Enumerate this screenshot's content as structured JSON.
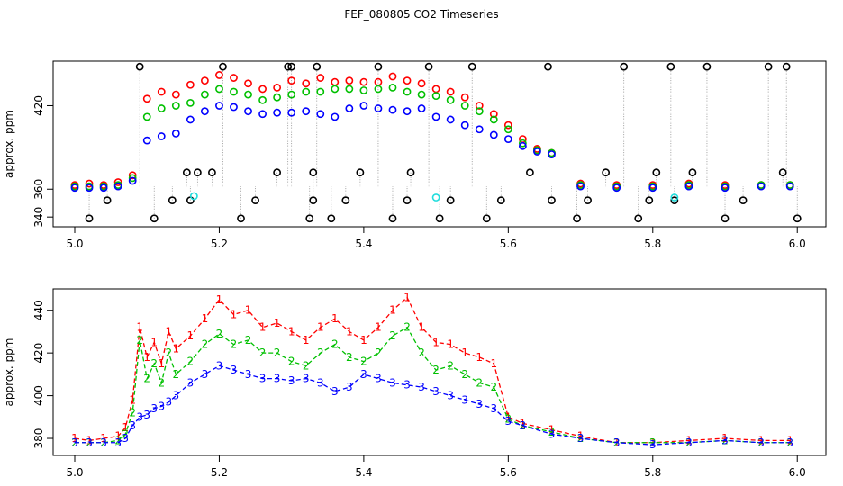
{
  "title": "FEF_080805  CO2 Timeseries",
  "colors": {
    "series1": "#ff0000",
    "series2": "#00c000",
    "series3": "#0000ff",
    "outlier": "#000000",
    "cyan": "#22dddd",
    "link": "#888888"
  },
  "chart_data": [
    {
      "type": "scatter",
      "ylabel": "approx. ppm",
      "xlim": [
        5.0,
        6.0
      ],
      "ylim": [
        333,
        452
      ],
      "y_reversed": false,
      "y_orientation": "standard",
      "xticks": [
        "5.0",
        "5.2",
        "5.4",
        "5.6",
        "5.8",
        "6.0"
      ],
      "yticks": [
        "340",
        "360",
        "420"
      ],
      "grid": false,
      "series": [
        {
          "color": "red",
          "x": [
            5.0,
            5.02,
            5.04,
            5.06,
            5.08,
            5.1,
            5.12,
            5.14,
            5.16,
            5.18,
            5.2,
            5.22,
            5.24,
            5.26,
            5.28,
            5.3,
            5.32,
            5.34,
            5.36,
            5.38,
            5.4,
            5.42,
            5.44,
            5.46,
            5.48,
            5.5,
            5.52,
            5.54,
            5.56,
            5.58,
            5.6,
            5.62,
            5.64,
            5.66,
            5.7,
            5.75,
            5.8,
            5.85,
            5.9,
            5.95,
            5.99
          ],
          "y": [
            363,
            364,
            363,
            365,
            370,
            425,
            430,
            428,
            435,
            438,
            442,
            440,
            436,
            432,
            433,
            438,
            436,
            440,
            437,
            438,
            437,
            437,
            441,
            438,
            436,
            432,
            430,
            426,
            420,
            414,
            406,
            396,
            389,
            386,
            364,
            363,
            363,
            364,
            363,
            363,
            363
          ]
        },
        {
          "color": "green",
          "x": [
            5.0,
            5.02,
            5.04,
            5.06,
            5.08,
            5.1,
            5.12,
            5.14,
            5.16,
            5.18,
            5.2,
            5.22,
            5.24,
            5.26,
            5.28,
            5.3,
            5.32,
            5.34,
            5.36,
            5.38,
            5.4,
            5.42,
            5.44,
            5.46,
            5.48,
            5.5,
            5.52,
            5.54,
            5.56,
            5.58,
            5.6,
            5.62,
            5.64,
            5.66,
            5.7,
            5.75,
            5.8,
            5.85,
            5.9,
            5.95,
            5.99
          ],
          "y": [
            362,
            362,
            362,
            363,
            368,
            412,
            418,
            420,
            422,
            428,
            432,
            430,
            428,
            424,
            426,
            428,
            430,
            430,
            432,
            432,
            431,
            432,
            433,
            430,
            428,
            427,
            424,
            420,
            416,
            410,
            403,
            393,
            388,
            386,
            363,
            362,
            362,
            363,
            362,
            363,
            363
          ]
        },
        {
          "color": "blue",
          "x": [
            5.0,
            5.02,
            5.04,
            5.06,
            5.08,
            5.1,
            5.12,
            5.14,
            5.16,
            5.18,
            5.2,
            5.22,
            5.24,
            5.26,
            5.28,
            5.3,
            5.32,
            5.34,
            5.36,
            5.38,
            5.4,
            5.42,
            5.44,
            5.46,
            5.48,
            5.5,
            5.52,
            5.54,
            5.56,
            5.58,
            5.6,
            5.62,
            5.64,
            5.66,
            5.7,
            5.75,
            5.8,
            5.85,
            5.9,
            5.95,
            5.99
          ],
          "y": [
            361,
            361,
            361,
            362,
            366,
            395,
            398,
            400,
            410,
            416,
            420,
            419,
            416,
            414,
            415,
            415,
            416,
            414,
            412,
            418,
            420,
            418,
            417,
            416,
            418,
            412,
            410,
            406,
            403,
            399,
            396,
            391,
            387,
            385,
            362,
            361,
            361,
            362,
            361,
            362,
            362
          ]
        },
        {
          "color": "black",
          "x": [
            5.02,
            5.045,
            5.09,
            5.11,
            5.135,
            5.155,
            5.16,
            5.17,
            5.19,
            5.205,
            5.23,
            5.25,
            5.28,
            5.295,
            5.3,
            5.325,
            5.33,
            5.33,
            5.335,
            5.355,
            5.375,
            5.395,
            5.42,
            5.44,
            5.46,
            5.465,
            5.49,
            5.505,
            5.52,
            5.55,
            5.57,
            5.59,
            5.63,
            5.655,
            5.66,
            5.695,
            5.71,
            5.735,
            5.76,
            5.78,
            5.795,
            5.805,
            5.825,
            5.83,
            5.855,
            5.875,
            5.9,
            5.925,
            5.96,
            5.98,
            5.985,
            6.0
          ],
          "y": [
            339,
            352,
            448,
            339,
            352,
            372,
            352,
            372,
            372,
            448,
            339,
            352,
            372,
            448,
            448,
            339,
            352,
            372,
            448,
            339,
            352,
            372,
            448,
            339,
            352,
            372,
            448,
            339,
            352,
            448,
            339,
            352,
            372,
            448,
            352,
            339,
            352,
            372,
            448,
            339,
            352,
            372,
            448,
            352,
            372,
            448,
            339,
            352,
            448,
            372,
            448,
            339
          ]
        },
        {
          "color": "cyan",
          "x": [
            5.165,
            5.5,
            5.83
          ],
          "y": [
            355,
            354,
            354
          ]
        }
      ]
    },
    {
      "type": "line",
      "ylabel": "approx. ppm",
      "xlim": [
        5.0,
        6.0
      ],
      "ylim": [
        372,
        450
      ],
      "xticks": [
        "5.0",
        "5.2",
        "5.4",
        "5.6",
        "5.8",
        "6.0"
      ],
      "yticks": [
        "380",
        "400",
        "420",
        "440"
      ],
      "grid": false,
      "series": [
        {
          "name": "1",
          "color": "red",
          "x": [
            5.0,
            5.02,
            5.04,
            5.06,
            5.07,
            5.08,
            5.09,
            5.1,
            5.11,
            5.12,
            5.13,
            5.14,
            5.16,
            5.18,
            5.2,
            5.22,
            5.24,
            5.26,
            5.28,
            5.3,
            5.32,
            5.34,
            5.36,
            5.38,
            5.4,
            5.42,
            5.44,
            5.46,
            5.48,
            5.5,
            5.52,
            5.54,
            5.56,
            5.58,
            5.6,
            5.62,
            5.66,
            5.7,
            5.75,
            5.8,
            5.85,
            5.9,
            5.95,
            5.99
          ],
          "y": [
            380,
            379,
            380,
            381,
            385,
            398,
            432,
            418,
            425,
            415,
            430,
            422,
            428,
            436,
            445,
            438,
            440,
            432,
            434,
            430,
            426,
            432,
            436,
            430,
            426,
            432,
            440,
            446,
            432,
            425,
            424,
            420,
            418,
            415,
            390,
            387,
            384,
            381,
            378,
            378,
            379,
            380,
            379,
            379
          ]
        },
        {
          "name": "2",
          "color": "green",
          "x": [
            5.0,
            5.02,
            5.04,
            5.06,
            5.07,
            5.08,
            5.09,
            5.1,
            5.11,
            5.12,
            5.13,
            5.14,
            5.16,
            5.18,
            5.2,
            5.22,
            5.24,
            5.26,
            5.28,
            5.3,
            5.32,
            5.34,
            5.36,
            5.38,
            5.4,
            5.42,
            5.44,
            5.46,
            5.48,
            5.5,
            5.52,
            5.54,
            5.56,
            5.58,
            5.6,
            5.62,
            5.66,
            5.7,
            5.75,
            5.8,
            5.85,
            5.9,
            5.95,
            5.99
          ],
          "y": [
            378,
            378,
            378,
            379,
            382,
            392,
            426,
            408,
            415,
            406,
            420,
            410,
            416,
            424,
            429,
            424,
            426,
            420,
            420,
            416,
            414,
            420,
            424,
            418,
            416,
            420,
            428,
            432,
            420,
            412,
            414,
            410,
            406,
            404,
            389,
            386,
            383,
            380,
            378,
            378,
            378,
            379,
            378,
            378
          ]
        },
        {
          "name": "3",
          "color": "blue",
          "x": [
            5.0,
            5.02,
            5.04,
            5.06,
            5.07,
            5.08,
            5.09,
            5.1,
            5.11,
            5.12,
            5.13,
            5.14,
            5.16,
            5.18,
            5.2,
            5.22,
            5.24,
            5.26,
            5.28,
            5.3,
            5.32,
            5.34,
            5.36,
            5.38,
            5.4,
            5.42,
            5.44,
            5.46,
            5.48,
            5.5,
            5.52,
            5.54,
            5.56,
            5.58,
            5.6,
            5.62,
            5.66,
            5.7,
            5.75,
            5.8,
            5.85,
            5.9,
            5.95,
            5.99
          ],
          "y": [
            378,
            378,
            378,
            378,
            380,
            386,
            390,
            391,
            394,
            395,
            397,
            400,
            406,
            410,
            414,
            412,
            410,
            408,
            408,
            407,
            408,
            406,
            402,
            404,
            410,
            408,
            406,
            405,
            404,
            402,
            400,
            398,
            396,
            394,
            388,
            386,
            382,
            380,
            378,
            377,
            378,
            379,
            378,
            378
          ]
        }
      ]
    }
  ]
}
